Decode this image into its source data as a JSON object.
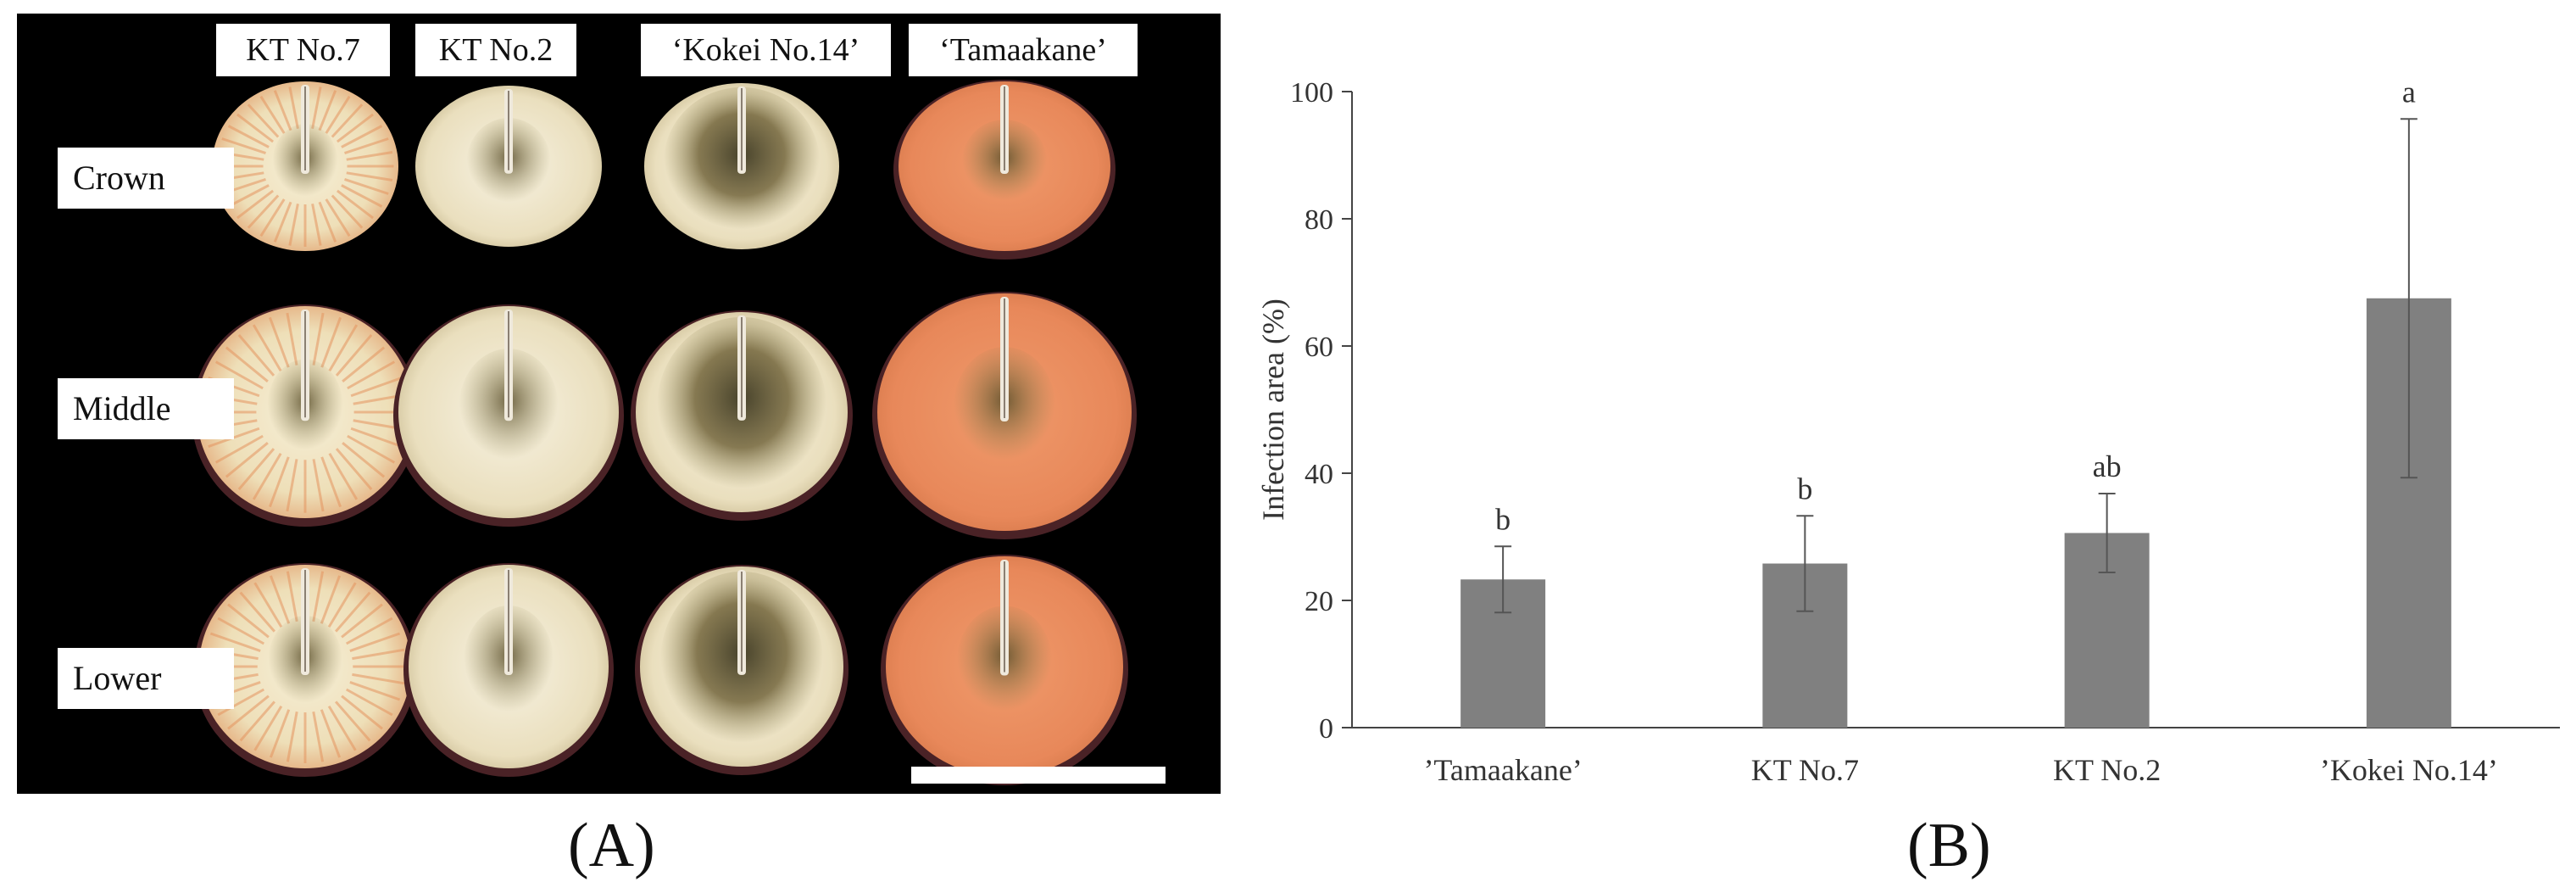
{
  "panel_a": {
    "column_labels": [
      "KT No.7",
      "KT No.2",
      "‘Kokei No.14’",
      "‘Tamaakane’"
    ],
    "row_labels": [
      "Crown",
      "Middle",
      "Lower"
    ],
    "label": "(A)",
    "colors": {
      "background": "#000000",
      "white_flesh": "#efe6c8",
      "orange_flesh": "#e88a5a",
      "infection": "#6b5d32",
      "skin": "#4a2226"
    }
  },
  "panel_b": {
    "label": "(B)"
  },
  "chart_data": {
    "type": "bar",
    "categories": [
      "’Tamaakane’",
      "KT No.7",
      "KT No.2",
      "’Kokei No.14’"
    ],
    "values": [
      23.3,
      25.8,
      30.6,
      67.5
    ],
    "errors": [
      5.2,
      7.5,
      6.2,
      28.2
    ],
    "significance": [
      "b",
      "b",
      "ab",
      "a"
    ],
    "ylabel": "Infection area (%)",
    "xlabel": "",
    "ylim": [
      0,
      100
    ],
    "yticks": [
      0,
      20,
      40,
      60,
      80,
      100
    ],
    "grid": false,
    "bar_color": "#808080"
  }
}
